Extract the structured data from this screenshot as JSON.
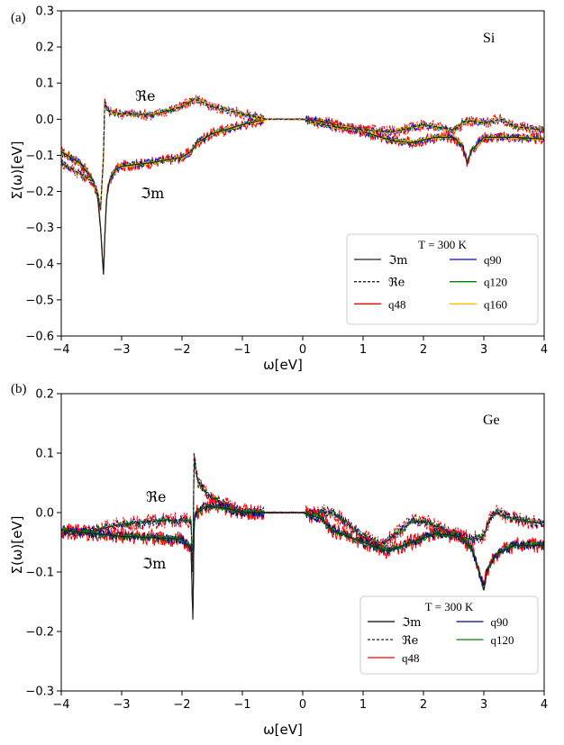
{
  "chart_data": [
    {
      "id": "a",
      "type": "line",
      "panel_label": "(a)",
      "material": "Si",
      "xlabel": "ω[eV]",
      "ylabel": "Σ(ω)[eV]",
      "xlim": [
        -4,
        4
      ],
      "ylim": [
        -0.6,
        0.3
      ],
      "xticks": [
        -4,
        -3,
        -2,
        -1,
        0,
        1,
        2,
        3,
        4
      ],
      "yticks": [
        0.3,
        0.2,
        0.1,
        0.0,
        -0.1,
        -0.2,
        -0.3,
        -0.4,
        -0.5,
        -0.6
      ],
      "annotations": {
        "re": "ℜe",
        "im": "ℑm"
      },
      "legend": {
        "title": "T = 300 K",
        "location": "lower-right",
        "entries": [
          {
            "label": "ℑm",
            "color": "#222222",
            "style": "solid"
          },
          {
            "label": "ℜe",
            "color": "#222222",
            "style": "dashed"
          },
          {
            "label": "q48",
            "color": "#ff0000",
            "style": "solid"
          },
          {
            "label": "q90",
            "color": "#0000ff",
            "style": "solid"
          },
          {
            "label": "q120",
            "color": "#008000",
            "style": "solid"
          },
          {
            "label": "q160",
            "color": "#ffc000",
            "style": "solid"
          }
        ]
      },
      "series": [
        {
          "name": "Im (q48/q90/q120/q160)",
          "kind": "im",
          "x": [
            -4,
            -3.7,
            -3.5,
            -3.4,
            -3.35,
            -3.32,
            -3.3,
            -3.28,
            -3.25,
            -3.2,
            -3.1,
            -3.0,
            -2.5,
            -2.0,
            -1.85,
            -1.75,
            -1.5,
            -1.0,
            -0.7,
            -0.6,
            0.0,
            0.3,
            1.0,
            1.5,
            1.8,
            2.2,
            2.5,
            2.65,
            2.72,
            2.8,
            3.0,
            3.5,
            4.0
          ],
          "y": [
            -0.09,
            -0.12,
            -0.16,
            -0.21,
            -0.3,
            -0.38,
            -0.43,
            -0.33,
            -0.22,
            -0.17,
            -0.14,
            -0.13,
            -0.12,
            -0.105,
            -0.09,
            -0.065,
            -0.04,
            -0.015,
            -0.003,
            0.0,
            0.0,
            -0.005,
            -0.035,
            -0.06,
            -0.065,
            -0.05,
            -0.05,
            -0.075,
            -0.12,
            -0.085,
            -0.05,
            -0.05,
            -0.055
          ]
        },
        {
          "name": "Re (q48/q90/q120/q160)",
          "kind": "re",
          "x": [
            -4,
            -3.7,
            -3.5,
            -3.4,
            -3.35,
            -3.3,
            -3.28,
            -3.25,
            -3.2,
            -3.0,
            -2.5,
            -2.0,
            -1.8,
            -1.7,
            -1.5,
            -1.0,
            -0.6,
            -0.3,
            0.0,
            0.2,
            0.5,
            1.0,
            1.5,
            1.75,
            2.0,
            2.5,
            2.7,
            2.8,
            3.0,
            3.3,
            3.5,
            4.0
          ],
          "y": [
            -0.12,
            -0.15,
            -0.17,
            -0.2,
            -0.25,
            -0.1,
            0.05,
            0.03,
            0.02,
            0.015,
            0.012,
            0.035,
            0.055,
            0.05,
            0.035,
            0.015,
            0.0,
            0.0,
            0.0,
            -0.01,
            -0.02,
            -0.03,
            -0.035,
            -0.025,
            -0.015,
            -0.03,
            -0.005,
            -0.005,
            -0.01,
            0.0,
            -0.02,
            -0.03
          ]
        }
      ]
    },
    {
      "id": "b",
      "type": "line",
      "panel_label": "(b)",
      "material": "Ge",
      "xlabel": "ω[eV]",
      "ylabel": "Σ(ω)[eV]",
      "xlim": [
        -4,
        4
      ],
      "ylim": [
        -0.3,
        0.2
      ],
      "xticks": [
        -4,
        -3,
        -2,
        -1,
        0,
        1,
        2,
        3,
        4
      ],
      "yticks": [
        0.2,
        0.1,
        0.0,
        -0.1,
        -0.2,
        -0.3
      ],
      "annotations": {
        "re": "ℜe",
        "im": "ℑm"
      },
      "legend": {
        "title": "T = 300 K",
        "location": "lower-right",
        "entries": [
          {
            "label": "ℑm",
            "color": "#000000",
            "style": "solid"
          },
          {
            "label": "ℜe",
            "color": "#222222",
            "style": "dashed"
          },
          {
            "label": "q48",
            "color": "#ff0000",
            "style": "solid"
          },
          {
            "label": "q90",
            "color": "#00008b",
            "style": "solid"
          },
          {
            "label": "q120",
            "color": "#008000",
            "style": "solid"
          }
        ]
      },
      "series": [
        {
          "name": "Re (q48/q90/q120)",
          "kind": "re",
          "x": [
            -4,
            -3.5,
            -3.0,
            -2.5,
            -2.0,
            -1.85,
            -1.82,
            -1.8,
            -1.78,
            -1.75,
            -1.7,
            -1.5,
            -1.2,
            -1.0,
            -0.6,
            0.0,
            0.5,
            1.0,
            1.3,
            1.5,
            1.8,
            2.0,
            2.5,
            2.8,
            3.0,
            3.1,
            3.2,
            3.5,
            4.0
          ],
          "y": [
            -0.035,
            -0.03,
            -0.02,
            -0.015,
            -0.012,
            -0.015,
            -0.1,
            0.1,
            0.08,
            0.06,
            0.045,
            0.025,
            0.01,
            0.002,
            0.0,
            0.0,
            0.0,
            -0.04,
            -0.055,
            -0.04,
            -0.015,
            -0.015,
            -0.035,
            -0.045,
            -0.04,
            -0.01,
            0.0,
            -0.01,
            -0.02
          ]
        },
        {
          "name": "Im (q48/q90/q120)",
          "kind": "im",
          "x": [
            -4,
            -3.5,
            -3.0,
            -2.5,
            -2.0,
            -1.85,
            -1.82,
            -1.8,
            -1.78,
            -1.75,
            -1.6,
            -1.3,
            -1.0,
            -0.6,
            0.0,
            0.3,
            0.5,
            1.0,
            1.4,
            1.8,
            2.2,
            2.6,
            2.8,
            2.95,
            3.0,
            3.05,
            3.2,
            3.5,
            4.0
          ],
          "y": [
            -0.03,
            -0.035,
            -0.04,
            -0.042,
            -0.045,
            -0.06,
            -0.18,
            -0.02,
            -0.005,
            0.0,
            0.01,
            0.008,
            0.0,
            0.0,
            0.0,
            -0.01,
            -0.03,
            -0.05,
            -0.065,
            -0.05,
            -0.035,
            -0.04,
            -0.06,
            -0.11,
            -0.13,
            -0.1,
            -0.07,
            -0.055,
            -0.055
          ]
        }
      ]
    }
  ]
}
